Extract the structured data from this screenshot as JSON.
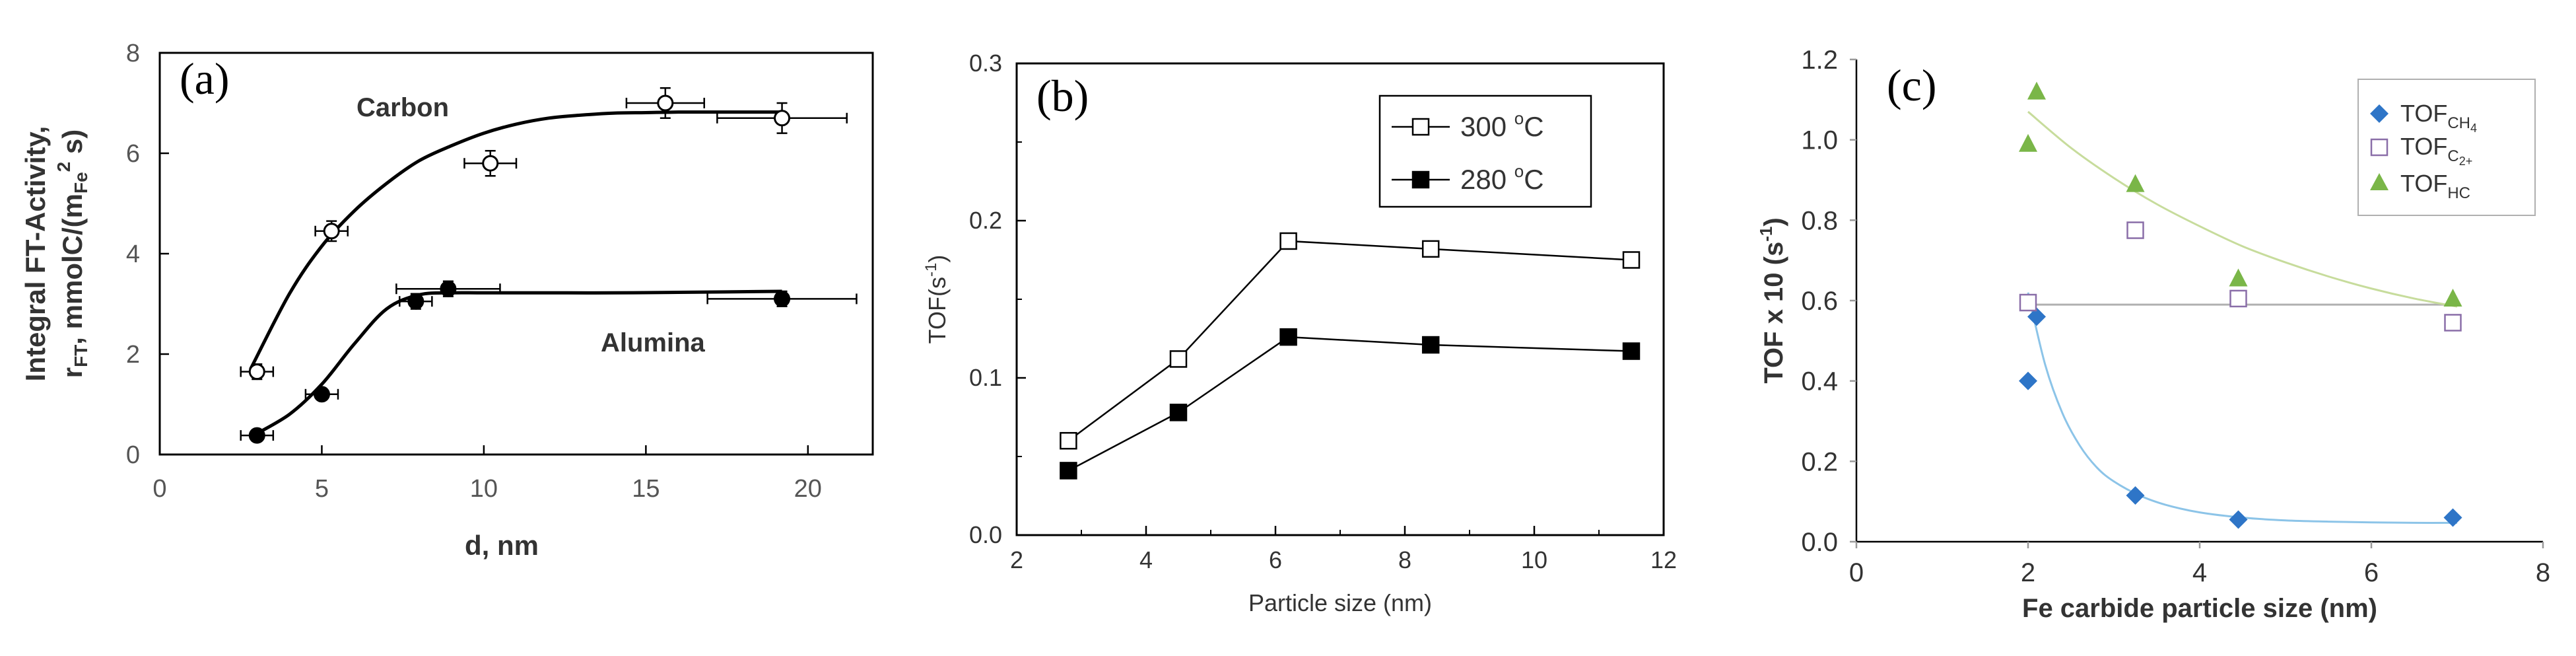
{
  "chart_data": [
    {
      "panel": "(a)",
      "type": "scatter",
      "xlabel": "d, nm",
      "ylabel_line1": "Integral FT-Activity,",
      "ylabel_line2_base": "r",
      "ylabel_line2_sub": "FT",
      "ylabel_line2_mid": ", mmolC/(m",
      "ylabel_line2_sub2": "Fe",
      "ylabel_line2_sup": "2",
      "ylabel_line2_end": " s)",
      "xlim": [
        0,
        22
      ],
      "ylim": [
        0,
        8
      ],
      "xticks": [
        "0",
        "5",
        "10",
        "15",
        "20"
      ],
      "yticks": [
        "0",
        "2",
        "4",
        "6",
        "8"
      ],
      "series": [
        {
          "name": "Carbon",
          "marker": "open-circle",
          "x": [
            3.0,
            5.3,
            10.2,
            15.6,
            19.2
          ],
          "y": [
            1.65,
            4.45,
            5.8,
            7.0,
            6.7
          ],
          "xerr": [
            0.5,
            0.5,
            0.8,
            1.2,
            2.0
          ],
          "yerr": [
            0.15,
            0.2,
            0.25,
            0.3,
            0.3
          ],
          "fit_x": [
            2.8,
            4,
            5,
            6,
            7,
            8,
            9,
            10,
            11,
            12,
            13,
            14,
            15,
            16,
            17,
            18,
            19.2
          ],
          "fit_y": [
            1.7,
            3.2,
            4.15,
            4.85,
            5.4,
            5.85,
            6.15,
            6.4,
            6.58,
            6.7,
            6.76,
            6.8,
            6.81,
            6.82,
            6.82,
            6.82,
            6.82
          ]
        },
        {
          "name": "Alumina",
          "marker": "filled-circle",
          "x": [
            3.0,
            5.0,
            7.9,
            8.9,
            19.2
          ],
          "y": [
            0.38,
            1.2,
            3.05,
            3.3,
            3.1
          ],
          "xerr": [
            0.5,
            0.5,
            0.5,
            1.6,
            2.3
          ],
          "yerr": [
            0.1,
            0.1,
            0.15,
            0.15,
            0.15
          ],
          "fit_x": [
            2.8,
            4,
            5,
            6,
            7,
            8,
            9,
            10,
            12,
            14,
            16,
            19.2
          ],
          "fit_y": [
            0.35,
            0.8,
            1.4,
            2.2,
            2.9,
            3.18,
            3.22,
            3.22,
            3.22,
            3.22,
            3.23,
            3.25
          ]
        }
      ],
      "annotations": [
        "Carbon",
        "Alumina"
      ]
    },
    {
      "panel": "(b)",
      "type": "line",
      "xlabel": "Particle size (nm)",
      "ylabel_base": "TOF(s",
      "ylabel_sup": "-1",
      "ylabel_end": ")",
      "xlim": [
        2,
        12
      ],
      "ylim": [
        0.0,
        0.3
      ],
      "xticks": [
        "2",
        "4",
        "6",
        "8",
        "10",
        "12"
      ],
      "yticks": [
        "0.0",
        "0.1",
        "0.2",
        "0.3"
      ],
      "series": [
        {
          "name": "300 °C",
          "legend_num": "300",
          "legend_unit_sup": "o",
          "legend_unit": "C",
          "marker": "open-square",
          "x": [
            2.8,
            4.5,
            6.2,
            8.4,
            11.5
          ],
          "y": [
            0.06,
            0.112,
            0.187,
            0.182,
            0.175
          ]
        },
        {
          "name": "280 °C",
          "legend_num": "280",
          "legend_unit_sup": "o",
          "legend_unit": "C",
          "marker": "filled-square",
          "x": [
            2.8,
            4.5,
            6.2,
            8.4,
            11.5
          ],
          "y": [
            0.041,
            0.078,
            0.126,
            0.121,
            0.117
          ]
        }
      ]
    },
    {
      "panel": "(c)",
      "type": "scatter",
      "xlabel": "Fe carbide particle size (nm)",
      "ylabel_base": "TOF x 10 (s",
      "ylabel_sup": "-1",
      "ylabel_end": ")",
      "xlim": [
        0,
        8
      ],
      "ylim": [
        0.0,
        1.2
      ],
      "xticks": [
        "0",
        "2",
        "4",
        "6",
        "8"
      ],
      "yticks": [
        "0.0",
        "0.2",
        "0.4",
        "0.6",
        "0.8",
        "1.0",
        "1.2"
      ],
      "series": [
        {
          "name": "TOF_CH4",
          "legend_base": "TOF",
          "legend_sub": "CH",
          "legend_sub2": "4",
          "marker": "diamond",
          "color": "#2e75c7",
          "x": [
            2.0,
            2.1,
            3.25,
            4.45,
            6.95
          ],
          "y": [
            0.4,
            0.56,
            0.115,
            0.055,
            0.06
          ],
          "fit_x": [
            2.0,
            2.2,
            2.4,
            2.6,
            2.8,
            3.0,
            3.3,
            3.6,
            4.0,
            4.5,
            5.0,
            5.5,
            6.0,
            6.5,
            7.0
          ],
          "fit_y": [
            0.62,
            0.44,
            0.32,
            0.24,
            0.185,
            0.15,
            0.115,
            0.092,
            0.073,
            0.06,
            0.053,
            0.05,
            0.048,
            0.047,
            0.047
          ],
          "fit_color": "#8cc4e8"
        },
        {
          "name": "TOF_C2+",
          "legend_base": "TOF",
          "legend_sub": "C",
          "legend_sub2": "2+",
          "marker": "open-square",
          "color": "#8a6ea8",
          "x": [
            2.0,
            3.25,
            4.45,
            6.95
          ],
          "y": [
            0.595,
            0.775,
            0.605,
            0.545
          ],
          "fit_x": [
            2.0,
            7.0
          ],
          "fit_y": [
            0.59,
            0.59
          ],
          "fit_color": "#b0b0b0"
        },
        {
          "name": "TOF_HC",
          "legend_base": "TOF",
          "legend_sub": "HC",
          "legend_sub2": "",
          "marker": "triangle",
          "color": "#7ab648",
          "x": [
            2.0,
            2.1,
            3.25,
            4.45,
            6.95
          ],
          "y": [
            0.99,
            1.12,
            0.89,
            0.655,
            0.605
          ],
          "fit_x": [
            2.0,
            2.5,
            3.0,
            3.5,
            4.0,
            4.5,
            5.0,
            5.5,
            6.0,
            6.5,
            7.0
          ],
          "fit_y": [
            1.07,
            0.98,
            0.905,
            0.84,
            0.785,
            0.735,
            0.695,
            0.66,
            0.63,
            0.605,
            0.585
          ],
          "fit_color": "#c7dc9c"
        }
      ]
    }
  ]
}
